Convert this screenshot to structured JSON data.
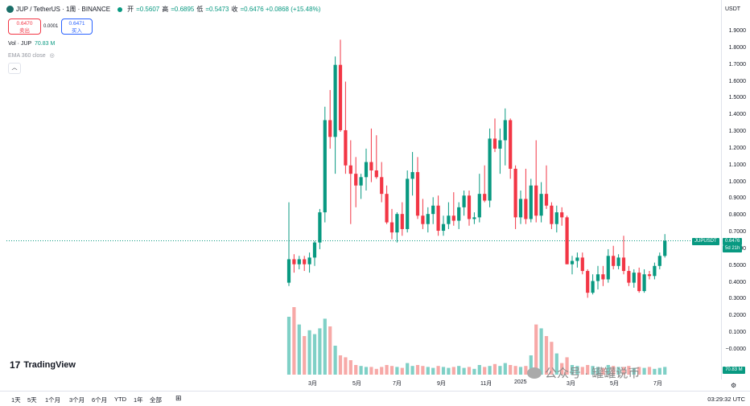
{
  "header": {
    "symbol": "JUP / TetherUS · 1周 · BINANCE",
    "open_label": "开",
    "open": "=0.5607",
    "high_label": "高",
    "high": "=0.6895",
    "low_label": "低",
    "low": "=0.5473",
    "close_label": "收",
    "close": "=0.6476 +0.0868 (+15.48%)"
  },
  "trade": {
    "sell_price": "0.6470",
    "sell_label": "卖出",
    "spread": "0.0001",
    "buy_price": "0.6471",
    "buy_label": "买入"
  },
  "indicators": {
    "vol_label": "Vol · JUP",
    "vol_value": "70.83 M",
    "ema_label": "EMA 360 close"
  },
  "price_axis": {
    "currency": "USDT",
    "ticks": [
      "1.9000",
      "1.8000",
      "1.7000",
      "1.6000",
      "1.5000",
      "1.4000",
      "1.3000",
      "1.2000",
      "1.1000",
      "1.0000",
      "0.9000",
      "0.8000",
      "0.7000",
      "0.6000",
      "0.5000",
      "0.4000",
      "0.3000",
      "0.2000",
      "0.1000",
      "−0.0000"
    ],
    "last_price_tag": "JUPUSDT",
    "last_price": "0.6476",
    "countdown": "5d 21h",
    "volume_tag": "70.83 M",
    "bottom_value": "0.0000"
  },
  "time_axis": {
    "labels": [
      "3月",
      "5月",
      "7月",
      "9月",
      "11月",
      "2025",
      "3月",
      "5月",
      "7月"
    ]
  },
  "bottom_bar": {
    "ranges": [
      "1天",
      "5天",
      "1个月",
      "3个月",
      "6个月",
      "YTD",
      "1年",
      "全部"
    ],
    "clock": "03:29:32 UTC"
  },
  "branding": {
    "logo_text": "TradingView",
    "watermark": "公众号 · 罐罐说币"
  },
  "colors": {
    "up": "#089981",
    "down": "#f23645",
    "vol_up": "#7fd0c6",
    "vol_down": "#f7a9a7"
  },
  "chart_data": {
    "type": "candlestick",
    "interval": "1W",
    "ylim": [
      0,
      1.95
    ],
    "candles": [
      {
        "o": 0.4,
        "h": 0.88,
        "l": 0.38,
        "c": 0.54
      },
      {
        "o": 0.54,
        "h": 0.57,
        "l": 0.46,
        "c": 0.51
      },
      {
        "o": 0.51,
        "h": 0.56,
        "l": 0.48,
        "c": 0.54
      },
      {
        "o": 0.54,
        "h": 0.56,
        "l": 0.47,
        "c": 0.51
      },
      {
        "o": 0.51,
        "h": 0.58,
        "l": 0.46,
        "c": 0.55
      },
      {
        "o": 0.55,
        "h": 0.65,
        "l": 0.5,
        "c": 0.64
      },
      {
        "o": 0.64,
        "h": 0.84,
        "l": 0.6,
        "c": 0.82
      },
      {
        "o": 0.82,
        "h": 1.45,
        "l": 0.76,
        "c": 1.37
      },
      {
        "o": 1.37,
        "h": 1.55,
        "l": 1.2,
        "c": 1.27
      },
      {
        "o": 1.27,
        "h": 1.75,
        "l": 1.05,
        "c": 1.7
      },
      {
        "o": 1.7,
        "h": 1.85,
        "l": 1.3,
        "c": 1.31
      },
      {
        "o": 1.31,
        "h": 1.6,
        "l": 1.05,
        "c": 1.1
      },
      {
        "o": 1.1,
        "h": 1.25,
        "l": 0.75,
        "c": 1.05
      },
      {
        "o": 1.05,
        "h": 1.15,
        "l": 0.85,
        "c": 0.98
      },
      {
        "o": 0.98,
        "h": 1.05,
        "l": 0.9,
        "c": 1.03
      },
      {
        "o": 1.03,
        "h": 1.2,
        "l": 0.95,
        "c": 1.12
      },
      {
        "o": 1.12,
        "h": 1.32,
        "l": 1.0,
        "c": 1.07
      },
      {
        "o": 1.07,
        "h": 1.28,
        "l": 1.02,
        "c": 1.03
      },
      {
        "o": 1.03,
        "h": 1.12,
        "l": 0.88,
        "c": 0.93
      },
      {
        "o": 0.93,
        "h": 0.98,
        "l": 0.75,
        "c": 0.76
      },
      {
        "o": 0.76,
        "h": 0.84,
        "l": 0.66,
        "c": 0.7
      },
      {
        "o": 0.7,
        "h": 0.82,
        "l": 0.64,
        "c": 0.81
      },
      {
        "o": 0.81,
        "h": 0.88,
        "l": 0.68,
        "c": 0.72
      },
      {
        "o": 0.72,
        "h": 1.07,
        "l": 0.7,
        "c": 1.02
      },
      {
        "o": 1.02,
        "h": 1.18,
        "l": 0.92,
        "c": 1.06
      },
      {
        "o": 1.06,
        "h": 1.15,
        "l": 0.78,
        "c": 0.8
      },
      {
        "o": 0.8,
        "h": 0.9,
        "l": 0.72,
        "c": 0.75
      },
      {
        "o": 0.75,
        "h": 0.85,
        "l": 0.7,
        "c": 0.81
      },
      {
        "o": 0.81,
        "h": 0.91,
        "l": 0.75,
        "c": 0.86
      },
      {
        "o": 0.86,
        "h": 0.92,
        "l": 0.68,
        "c": 0.71
      },
      {
        "o": 0.71,
        "h": 0.8,
        "l": 0.68,
        "c": 0.75
      },
      {
        "o": 0.75,
        "h": 0.88,
        "l": 0.72,
        "c": 0.8
      },
      {
        "o": 0.8,
        "h": 0.94,
        "l": 0.74,
        "c": 0.77
      },
      {
        "o": 0.77,
        "h": 0.88,
        "l": 0.72,
        "c": 0.85
      },
      {
        "o": 0.85,
        "h": 0.95,
        "l": 0.8,
        "c": 0.92
      },
      {
        "o": 0.92,
        "h": 0.95,
        "l": 0.74,
        "c": 0.78
      },
      {
        "o": 0.78,
        "h": 0.82,
        "l": 0.75,
        "c": 0.79
      },
      {
        "o": 0.79,
        "h": 1.05,
        "l": 0.76,
        "c": 0.93
      },
      {
        "o": 0.93,
        "h": 1.1,
        "l": 0.88,
        "c": 0.89
      },
      {
        "o": 0.89,
        "h": 1.32,
        "l": 0.85,
        "c": 1.26
      },
      {
        "o": 1.26,
        "h": 1.38,
        "l": 1.18,
        "c": 1.2
      },
      {
        "o": 1.2,
        "h": 1.32,
        "l": 1.05,
        "c": 1.25
      },
      {
        "o": 1.25,
        "h": 1.44,
        "l": 1.1,
        "c": 1.37
      },
      {
        "o": 1.37,
        "h": 1.38,
        "l": 1.02,
        "c": 1.08
      },
      {
        "o": 1.08,
        "h": 1.1,
        "l": 0.72,
        "c": 0.79
      },
      {
        "o": 0.79,
        "h": 0.95,
        "l": 0.75,
        "c": 0.9
      },
      {
        "o": 0.9,
        "h": 1.08,
        "l": 0.75,
        "c": 0.78
      },
      {
        "o": 0.78,
        "h": 1.02,
        "l": 0.76,
        "c": 0.98
      },
      {
        "o": 0.98,
        "h": 1.25,
        "l": 0.76,
        "c": 0.8
      },
      {
        "o": 0.8,
        "h": 1.0,
        "l": 0.76,
        "c": 0.93
      },
      {
        "o": 0.93,
        "h": 1.1,
        "l": 0.84,
        "c": 0.86
      },
      {
        "o": 0.86,
        "h": 0.88,
        "l": 0.72,
        "c": 0.75
      },
      {
        "o": 0.75,
        "h": 0.86,
        "l": 0.7,
        "c": 0.82
      },
      {
        "o": 0.82,
        "h": 0.85,
        "l": 0.74,
        "c": 0.79
      },
      {
        "o": 0.79,
        "h": 0.8,
        "l": 0.51,
        "c": 0.51
      },
      {
        "o": 0.51,
        "h": 0.56,
        "l": 0.45,
        "c": 0.53
      },
      {
        "o": 0.53,
        "h": 0.58,
        "l": 0.49,
        "c": 0.55
      },
      {
        "o": 0.55,
        "h": 0.58,
        "l": 0.45,
        "c": 0.47
      },
      {
        "o": 0.47,
        "h": 0.48,
        "l": 0.31,
        "c": 0.34
      },
      {
        "o": 0.34,
        "h": 0.45,
        "l": 0.33,
        "c": 0.41
      },
      {
        "o": 0.41,
        "h": 0.5,
        "l": 0.36,
        "c": 0.45
      },
      {
        "o": 0.45,
        "h": 0.5,
        "l": 0.38,
        "c": 0.42
      },
      {
        "o": 0.42,
        "h": 0.6,
        "l": 0.4,
        "c": 0.56
      },
      {
        "o": 0.56,
        "h": 0.62,
        "l": 0.48,
        "c": 0.5
      },
      {
        "o": 0.5,
        "h": 0.57,
        "l": 0.48,
        "c": 0.55
      },
      {
        "o": 0.55,
        "h": 0.68,
        "l": 0.45,
        "c": 0.47
      },
      {
        "o": 0.47,
        "h": 0.5,
        "l": 0.38,
        "c": 0.4
      },
      {
        "o": 0.4,
        "h": 0.48,
        "l": 0.37,
        "c": 0.46
      },
      {
        "o": 0.46,
        "h": 0.49,
        "l": 0.34,
        "c": 0.35
      },
      {
        "o": 0.35,
        "h": 0.48,
        "l": 0.34,
        "c": 0.45
      },
      {
        "o": 0.45,
        "h": 0.47,
        "l": 0.42,
        "c": 0.44
      },
      {
        "o": 0.44,
        "h": 0.52,
        "l": 0.42,
        "c": 0.5
      },
      {
        "o": 0.5,
        "h": 0.58,
        "l": 0.48,
        "c": 0.56
      },
      {
        "o": 0.56,
        "h": 0.69,
        "l": 0.55,
        "c": 0.65
      }
    ],
    "volume_max": 100,
    "volumes": [
      60,
      70,
      52,
      40,
      46,
      42,
      48,
      58,
      50,
      30,
      20,
      18,
      15,
      10,
      9,
      8,
      8,
      6,
      8,
      10,
      9,
      8,
      7,
      12,
      9,
      10,
      9,
      8,
      7,
      9,
      8,
      7,
      8,
      9,
      7,
      8,
      6,
      10,
      8,
      9,
      11,
      9,
      12,
      10,
      9,
      8,
      9,
      20,
      52,
      48,
      40,
      34,
      22,
      12,
      18,
      10,
      9,
      8,
      10,
      9,
      8,
      7,
      10,
      9,
      8,
      8,
      9,
      7,
      8,
      7,
      8,
      6,
      7,
      8
    ]
  }
}
